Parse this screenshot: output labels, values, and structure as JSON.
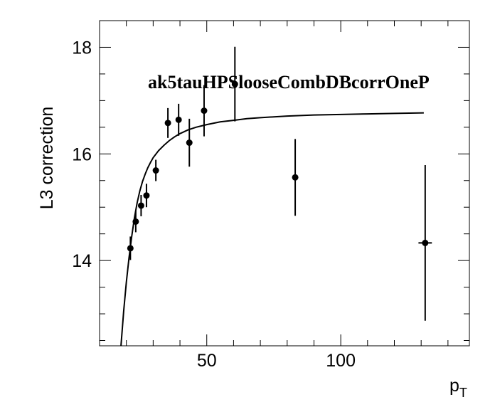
{
  "chart_data": {
    "type": "scatter",
    "title": "ak5tauHPSlooseCombDBcorrOneP",
    "xlabel": "p",
    "xlabel_sub": "T",
    "ylabel": "L3 correction",
    "xlim": [
      10,
      148
    ],
    "ylim": [
      12.4,
      18.5
    ],
    "x_tick_labels": [
      "50",
      "100"
    ],
    "y_tick_labels": [
      "14",
      "16",
      "18"
    ],
    "grid": false,
    "points": [
      {
        "x": 21.5,
        "y": 14.23,
        "yerr": 0.22,
        "xerr": 0.0
      },
      {
        "x": 23.5,
        "y": 14.73,
        "yerr": 0.2,
        "xerr": 0.0
      },
      {
        "x": 25.5,
        "y": 15.03,
        "yerr": 0.2,
        "xerr": 0.0
      },
      {
        "x": 27.5,
        "y": 15.22,
        "yerr": 0.22,
        "xerr": 0.0
      },
      {
        "x": 31.0,
        "y": 15.69,
        "yerr": 0.2,
        "xerr": 0.0
      },
      {
        "x": 35.5,
        "y": 16.58,
        "yerr": 0.28,
        "xerr": 0.0
      },
      {
        "x": 39.5,
        "y": 16.64,
        "yerr": 0.3,
        "xerr": 0.0
      },
      {
        "x": 43.5,
        "y": 16.21,
        "yerr": 0.45,
        "xerr": 0.0
      },
      {
        "x": 49.0,
        "y": 16.81,
        "yerr": 0.48,
        "xerr": 0.0
      },
      {
        "x": 60.5,
        "y": 17.31,
        "yerr": 0.7,
        "xerr": 0.0
      },
      {
        "x": 83.0,
        "y": 15.56,
        "yerr": 0.72,
        "xerr": 0.0
      },
      {
        "x": 131.5,
        "y": 14.33,
        "yerr": 1.46,
        "xerr": 2.5
      }
    ],
    "fit": {
      "x": [
        18.0,
        19.0,
        20.0,
        21.0,
        22.0,
        23.0,
        24.0,
        25.0,
        26.0,
        27.0,
        28.0,
        29.0,
        30.0,
        32.0,
        34.0,
        36.0,
        38.0,
        40.0,
        43.0,
        46.0,
        50.0,
        55.0,
        60.0,
        65.0,
        70.0,
        80.0,
        90.0,
        100.0,
        110.0,
        120.0,
        131.0
      ],
      "y": [
        12.4,
        13.05,
        13.6,
        14.05,
        14.45,
        14.8,
        15.08,
        15.3,
        15.48,
        15.62,
        15.74,
        15.84,
        15.93,
        16.06,
        16.16,
        16.25,
        16.32,
        16.38,
        16.45,
        16.5,
        16.55,
        16.6,
        16.63,
        16.66,
        16.68,
        16.71,
        16.73,
        16.74,
        16.75,
        16.76,
        16.77
      ]
    }
  }
}
